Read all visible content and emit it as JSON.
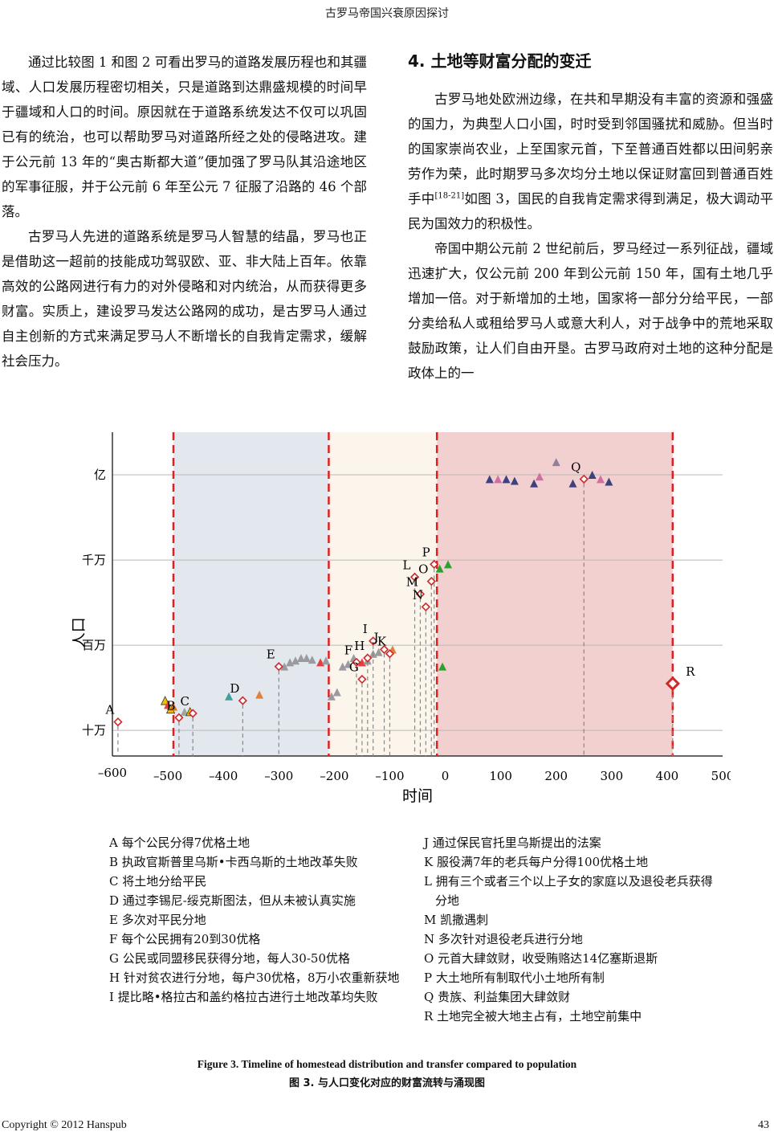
{
  "header": {
    "title": "古罗马帝国兴衰原因探讨"
  },
  "left_column": {
    "p1": "通过比较图 1 和图 2 可看出罗马的道路发展历程也和其疆域、人口发展历程密切相关，只是道路到达鼎盛规模的时间早于疆域和人口的时间。原因就在于道路系统发达不仅可以巩固已有的统治，也可以帮助罗马对道路所经之处的侵略进攻。建于公元前 13 年的“奥古斯都大道”便加强了罗马队其沿途地区的军事征服，并于公元前 6 年至公元 7 征服了沿路的 46 个部落。",
    "p2": "古罗马人先进的道路系统是罗马人智慧的结晶，罗马也正是借助这一超前的技能成功驾驭欧、亚、非大陆上百年。依靠高效的公路网进行有力的对外侵略和对内统治，从而获得更多财富。实质上，建设罗马发达公路网的成功，是古罗马人通过自主创新的方式来满足罗马人不断增长的自我肯定需求，缓解社会压力。"
  },
  "right_column": {
    "section_title": "4. 土地等财富分配的变迁",
    "p1_a": "古罗马地处欧洲边缘，在共和早期没有丰富的资源和强盛的国力，为典型人口小国，时时受到邻国骚扰和威胁。但当时的国家崇尚农业，上至国家元首，下至普通百姓都以田间躬亲劳作为荣，此时期罗马多次均分土地以保证财富回到普通百姓手中",
    "p1_cite": "[18-21]",
    "p1_b": "如图 3，国民的自我肯定需求得到满足，极大调动平民为国效力的积极性。",
    "p2": "帝国中期公元前 2 世纪前后，罗马经过一系列征战，疆域迅速扩大，仅公元前 200 年到公元前 150 年，国有土地几乎增加一倍。对于新增加的土地，国家将一部分分给平民，一部分卖给私人或租给罗马人或意大利人，对于战争中的荒地采取鼓励政策，让人们自由开垦。古罗马政府对土地的这种分配是政体上的一"
  },
  "chart_data": {
    "type": "scatter",
    "xlabel": "时间",
    "ylabel": "人口",
    "x_ticks": [
      "–600",
      "–500",
      "–400",
      "–300",
      "–200",
      "–100",
      "0",
      "100",
      "200",
      "300",
      "400",
      "500"
    ],
    "y_ticks": [
      "十万",
      "百万",
      "千万",
      "亿"
    ],
    "xlim": [
      -600,
      500
    ],
    "ylim_log10": [
      4.7,
      8.5
    ],
    "y_scale": "log",
    "periods": [
      {
        "from": -490,
        "to": -210,
        "color": "#e3e8ef"
      },
      {
        "from": -210,
        "to": -15,
        "color": "#fbf5ec"
      },
      {
        "from": -15,
        "to": 410,
        "color": "#f2d0d0"
      }
    ],
    "boundary_x": [
      -490,
      -210,
      -15,
      410
    ],
    "events": [
      {
        "label": "A",
        "x": -590,
        "y": 5.1
      },
      {
        "label": "B",
        "x": -480,
        "y": 5.15
      },
      {
        "label": "C",
        "x": -455,
        "y": 5.2
      },
      {
        "label": "D",
        "x": -365,
        "y": 5.35
      },
      {
        "label": "E",
        "x": -300,
        "y": 5.75
      },
      {
        "label": "F",
        "x": -160,
        "y": 5.8
      },
      {
        "label": "G",
        "x": -150,
        "y": 5.6
      },
      {
        "label": "H",
        "x": -140,
        "y": 5.85
      },
      {
        "label": "I",
        "x": -130,
        "y": 6.05
      },
      {
        "label": "J",
        "x": -110,
        "y": 5.95
      },
      {
        "label": "K",
        "x": -100,
        "y": 5.9
      },
      {
        "label": "L",
        "x": -55,
        "y": 6.8
      },
      {
        "label": "M",
        "x": -45,
        "y": 6.6
      },
      {
        "label": "N",
        "x": -35,
        "y": 6.45
      },
      {
        "label": "O",
        "x": -25,
        "y": 6.75
      },
      {
        "label": "P",
        "x": -20,
        "y": 6.95
      },
      {
        "label": "Q",
        "x": 250,
        "y": 7.95
      },
      {
        "label": "R",
        "x": 410,
        "y": 5.55
      }
    ],
    "population_points": [
      {
        "x": -505,
        "y": 5.35,
        "color": "#f0c000"
      },
      {
        "x": -500,
        "y": 5.3,
        "color": "#e04040"
      },
      {
        "x": -495,
        "y": 5.25,
        "color": "#f0c000"
      },
      {
        "x": -490,
        "y": 5.28,
        "color": "#e07020"
      },
      {
        "x": -470,
        "y": 5.22,
        "color": "#9aa89a"
      },
      {
        "x": -460,
        "y": 5.22,
        "color": "#f0c000"
      },
      {
        "x": -390,
        "y": 5.4,
        "color": "#40a0a0"
      },
      {
        "x": -335,
        "y": 5.42,
        "color": "#e08040"
      },
      {
        "x": -290,
        "y": 5.75,
        "color": "#9a9aa0"
      },
      {
        "x": -280,
        "y": 5.8,
        "color": "#9a9aa0"
      },
      {
        "x": -270,
        "y": 5.82,
        "color": "#9a9aa0"
      },
      {
        "x": -260,
        "y": 5.85,
        "color": "#9a9aa0"
      },
      {
        "x": -250,
        "y": 5.85,
        "color": "#9a9aa0"
      },
      {
        "x": -240,
        "y": 5.83,
        "color": "#9a9aa0"
      },
      {
        "x": -225,
        "y": 5.8,
        "color": "#e04040"
      },
      {
        "x": -215,
        "y": 5.82,
        "color": "#9a9aa0"
      },
      {
        "x": -205,
        "y": 5.4,
        "color": "#9a9aa0"
      },
      {
        "x": -195,
        "y": 5.45,
        "color": "#9a9aa0"
      },
      {
        "x": -185,
        "y": 5.75,
        "color": "#9a9aa0"
      },
      {
        "x": -175,
        "y": 5.78,
        "color": "#9a9aa0"
      },
      {
        "x": -165,
        "y": 5.85,
        "color": "#9a9aa0"
      },
      {
        "x": -150,
        "y": 5.8,
        "color": "#e04040"
      },
      {
        "x": -140,
        "y": 5.82,
        "color": "#9a9aa0"
      },
      {
        "x": -130,
        "y": 5.9,
        "color": "#9a9aa0"
      },
      {
        "x": -120,
        "y": 5.92,
        "color": "#9a9aa0"
      },
      {
        "x": -95,
        "y": 5.95,
        "color": "#e08040"
      },
      {
        "x": -10,
        "y": 6.9,
        "color": "#30a030"
      },
      {
        "x": 5,
        "y": 6.95,
        "color": "#30a030"
      },
      {
        "x": -5,
        "y": 5.75,
        "color": "#30a030"
      },
      {
        "x": 80,
        "y": 7.95,
        "color": "#404080"
      },
      {
        "x": 95,
        "y": 7.95,
        "color": "#d070a0"
      },
      {
        "x": 110,
        "y": 7.95,
        "color": "#404080"
      },
      {
        "x": 125,
        "y": 7.93,
        "color": "#404080"
      },
      {
        "x": 160,
        "y": 7.9,
        "color": "#404080"
      },
      {
        "x": 170,
        "y": 7.98,
        "color": "#d070a0"
      },
      {
        "x": 200,
        "y": 8.15,
        "color": "#9080a0"
      },
      {
        "x": 230,
        "y": 7.9,
        "color": "#404080"
      },
      {
        "x": 265,
        "y": 8.0,
        "color": "#404080"
      },
      {
        "x": 280,
        "y": 7.95,
        "color": "#d070a0"
      },
      {
        "x": 295,
        "y": 7.92,
        "color": "#404080"
      }
    ]
  },
  "legend": {
    "left": [
      "A 每个公民分得7优格土地",
      "B 执政官斯普里乌斯•卡西乌斯的土地改革失败",
      "C 将土地分给平民",
      "D 通过李锡尼-绥克斯图法，但从未被认真实施",
      "E 多次对平民分地",
      "F 每个公民拥有20到30优格",
      "G 公民或同盟移民获得分地，每人30-50优格",
      "H 针对贫农进行分地，每户30优格，8万小农重新获地",
      "I 提比略•格拉古和盖约格拉古进行土地改革均失败"
    ],
    "right": [
      "J 通过保民官托里乌斯提出的法案",
      "K 服役满7年的老兵每户分得100优格土地",
      "L 拥有三个或者三个以上子女的家庭以及退役老兵获得分地",
      "M 凯撒遇刺",
      "N 多次针对退役老兵进行分地",
      "O 元首大肆敛财，收受贿赂达14亿塞斯退斯",
      "P 大土地所有制取代小土地所有制",
      "Q 贵族、利益集团大肆敛财",
      "R 土地完全被大地主占有，土地空前集中"
    ]
  },
  "captions": {
    "en": "Figure 3. Timeline of homestead distribution and transfer compared to population",
    "zh": "图 3.  与人口变化对应的财富流转与涌现图"
  },
  "footer": {
    "copyright": "Copyright © 2012 Hanspub",
    "page_number": "43"
  }
}
